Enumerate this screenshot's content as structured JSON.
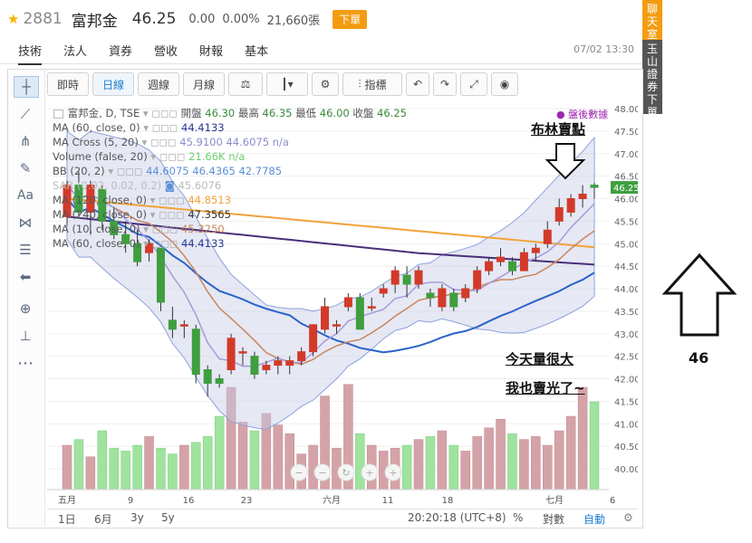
{
  "header": {
    "code": "2881",
    "name": "富邦金",
    "price": "46.25",
    "change": "0.00",
    "change_pct": "0.00%",
    "volume": "21,660張",
    "order_button": "下單"
  },
  "tabs": [
    "技術",
    "法人",
    "資券",
    "營收",
    "財報",
    "基本"
  ],
  "datetime": "07/02 13:30",
  "side_buttons": {
    "chat": "聊天室",
    "order": "玉山證券下單"
  },
  "toolbar": {
    "items": [
      "即時",
      "日線",
      "週線",
      "月線"
    ],
    "indicators_label": "指標"
  },
  "chart_legend": {
    "title": "富邦金, D, TSE",
    "ohlc_open_label": "開盤",
    "ohlc_open": "46.30",
    "ohlc_high_label": "最高",
    "ohlc_high": "46.35",
    "ohlc_low_label": "最低",
    "ohlc_low": "46.00",
    "ohlc_close_label": "收盤",
    "ohlc_close": "46.25",
    "after_hours": "盤後數據",
    "rows": [
      {
        "label": "MA (60, close, 0)",
        "value": "44.4133"
      },
      {
        "label": "MA Cross (5, 20)",
        "value": "45.9100 44.6075 n/a"
      },
      {
        "label": "Volume (false, 20)",
        "value": "21.66K n/a"
      },
      {
        "label": "BB (20, 2)",
        "value": "44.6075 46.4365 42.7785"
      },
      {
        "label": "SAR (0.02, 0.02, 0.2)",
        "value": "45.6076"
      },
      {
        "label": "MA (120, close, 0)",
        "value": "44.8513"
      },
      {
        "label": "MA (240, close, 0)",
        "value": "47.3565"
      },
      {
        "label": "MA (10, close, 0)",
        "value": "45.3250"
      },
      {
        "label": "MA (60, close, 0)",
        "value": "44.4133"
      }
    ]
  },
  "annotations": {
    "bollinger_sell": "布林賣點",
    "volume_big": "今天量很大",
    "sold_all": "我也賣光了~",
    "value": "46"
  },
  "chart_data": {
    "type": "candlestick",
    "y_ticks": [
      "48.00",
      "47.50",
      "47.00",
      "46.50",
      "46.00",
      "45.50",
      "45.00",
      "44.50",
      "44.00",
      "43.50",
      "43.00",
      "42.50",
      "42.00",
      "41.50",
      "41.00",
      "40.50",
      "40.00"
    ],
    "x_ticks": [
      "五月",
      "9",
      "16",
      "23",
      "六月",
      "11",
      "18",
      "七月",
      "6"
    ],
    "last_price_label": "46.25",
    "candles": [
      {
        "o": 45.6,
        "h": 46.4,
        "l": 45.4,
        "c": 46.3
      },
      {
        "o": 46.3,
        "h": 46.6,
        "l": 45.6,
        "c": 45.7
      },
      {
        "o": 45.7,
        "h": 46.4,
        "l": 45.2,
        "c": 46.3
      },
      {
        "o": 46.2,
        "h": 46.3,
        "l": 45.3,
        "c": 45.5
      },
      {
        "o": 45.5,
        "h": 45.8,
        "l": 45.1,
        "c": 45.2
      },
      {
        "o": 45.2,
        "h": 45.5,
        "l": 44.8,
        "c": 45.0
      },
      {
        "o": 45.0,
        "h": 45.3,
        "l": 44.5,
        "c": 44.6
      },
      {
        "o": 44.8,
        "h": 45.1,
        "l": 44.6,
        "c": 45.0
      },
      {
        "o": 44.9,
        "h": 44.9,
        "l": 43.5,
        "c": 43.7
      },
      {
        "o": 43.3,
        "h": 43.6,
        "l": 42.9,
        "c": 43.1
      },
      {
        "o": 43.2,
        "h": 43.3,
        "l": 42.9,
        "c": 43.2
      },
      {
        "o": 43.1,
        "h": 43.2,
        "l": 41.9,
        "c": 42.1
      },
      {
        "o": 42.2,
        "h": 42.3,
        "l": 41.6,
        "c": 41.9
      },
      {
        "o": 42.0,
        "h": 42.1,
        "l": 41.8,
        "c": 41.9
      },
      {
        "o": 42.2,
        "h": 43.0,
        "l": 42.1,
        "c": 42.9
      },
      {
        "o": 42.6,
        "h": 42.7,
        "l": 42.3,
        "c": 42.6
      },
      {
        "o": 42.5,
        "h": 42.6,
        "l": 42.0,
        "c": 42.1
      },
      {
        "o": 42.2,
        "h": 42.4,
        "l": 42.1,
        "c": 42.3
      },
      {
        "o": 42.3,
        "h": 42.5,
        "l": 42.1,
        "c": 42.4
      },
      {
        "o": 42.3,
        "h": 42.5,
        "l": 42.1,
        "c": 42.4
      },
      {
        "o": 42.4,
        "h": 42.7,
        "l": 42.3,
        "c": 42.6
      },
      {
        "o": 42.6,
        "h": 43.2,
        "l": 42.5,
        "c": 43.2
      },
      {
        "o": 43.1,
        "h": 43.8,
        "l": 43.0,
        "c": 43.6
      },
      {
        "o": 43.2,
        "h": 43.3,
        "l": 43.0,
        "c": 43.2
      },
      {
        "o": 43.6,
        "h": 43.9,
        "l": 43.5,
        "c": 43.8
      },
      {
        "o": 43.8,
        "h": 43.9,
        "l": 43.1,
        "c": 43.1
      },
      {
        "o": 43.6,
        "h": 43.8,
        "l": 43.5,
        "c": 43.6
      },
      {
        "o": 43.9,
        "h": 44.1,
        "l": 43.8,
        "c": 44.0
      },
      {
        "o": 44.1,
        "h": 44.5,
        "l": 43.9,
        "c": 44.4
      },
      {
        "o": 44.3,
        "h": 44.5,
        "l": 43.8,
        "c": 44.1
      },
      {
        "o": 44.1,
        "h": 44.5,
        "l": 44.0,
        "c": 44.4
      },
      {
        "o": 43.9,
        "h": 44.0,
        "l": 43.6,
        "c": 43.8
      },
      {
        "o": 43.6,
        "h": 44.1,
        "l": 43.5,
        "c": 44.0
      },
      {
        "o": 43.9,
        "h": 44.0,
        "l": 43.5,
        "c": 43.6
      },
      {
        "o": 43.8,
        "h": 44.1,
        "l": 43.7,
        "c": 44.0
      },
      {
        "o": 44.0,
        "h": 44.5,
        "l": 43.9,
        "c": 44.4
      },
      {
        "o": 44.4,
        "h": 44.7,
        "l": 44.3,
        "c": 44.6
      },
      {
        "o": 44.6,
        "h": 44.9,
        "l": 44.5,
        "c": 44.7
      },
      {
        "o": 44.6,
        "h": 44.7,
        "l": 44.3,
        "c": 44.4
      },
      {
        "o": 44.4,
        "h": 44.9,
        "l": 44.4,
        "c": 44.8
      },
      {
        "o": 44.8,
        "h": 45.0,
        "l": 44.6,
        "c": 44.9
      },
      {
        "o": 45.0,
        "h": 45.5,
        "l": 44.9,
        "c": 45.3
      },
      {
        "o": 45.5,
        "h": 46.0,
        "l": 45.4,
        "c": 45.8
      },
      {
        "o": 45.7,
        "h": 46.1,
        "l": 45.6,
        "c": 46.0
      },
      {
        "o": 46.0,
        "h": 46.3,
        "l": 45.8,
        "c": 46.1
      },
      {
        "o": 46.3,
        "h": 46.35,
        "l": 46.0,
        "c": 46.25
      }
    ],
    "volume": [
      30,
      34,
      22,
      40,
      28,
      26,
      30,
      36,
      28,
      24,
      30,
      32,
      36,
      50,
      70,
      46,
      40,
      52,
      44,
      38,
      24,
      30,
      64,
      28,
      72,
      38,
      30,
      26,
      28,
      30,
      34,
      36,
      40,
      30,
      26,
      36,
      42,
      48,
      38,
      34,
      36,
      30,
      40,
      50,
      70,
      60
    ]
  },
  "bottom_bar": {
    "ranges": [
      "1日",
      "6月",
      "3y",
      "5y"
    ],
    "time": "20:20:18 (UTC+8)",
    "pct": "%",
    "log": "對數",
    "auto": "自動"
  }
}
